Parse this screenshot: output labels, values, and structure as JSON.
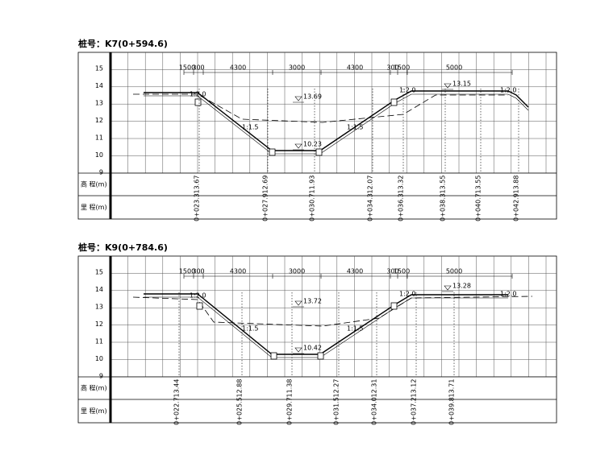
{
  "sections": [
    {
      "title": "桩号：K7(0+594.6)",
      "y_labels": [
        15,
        14,
        13,
        12,
        11,
        10,
        9
      ],
      "dims": [
        "1500",
        "300",
        "4300",
        "3000",
        "4300",
        "300",
        "1500",
        "5000"
      ],
      "slopes": [
        "1:2.0",
        "1:1.5",
        "1:1.5",
        "1:2.0",
        "1:2.0"
      ],
      "levels": [
        "13.69",
        "10.23",
        "13.15"
      ],
      "row_labels": [
        "高 程(m)",
        "里 程(m)"
      ],
      "elevations": [
        "13.67",
        "12.69",
        "11.93",
        "12.07",
        "13.32",
        "13.55",
        "13.55",
        "13.88"
      ],
      "mileages": [
        "0+023.3",
        "0+027.9",
        "0+030.7",
        "0+034.3",
        "0+036.3",
        "0+038.3",
        "0+040.7",
        "0+042.9"
      ]
    },
    {
      "title": "桩号：K9(0+784.6)",
      "y_labels": [
        15,
        14,
        13,
        12,
        11,
        10,
        9
      ],
      "dims": [
        "1500",
        "300",
        "4300",
        "3000",
        "4300",
        "300",
        "1500",
        "5000"
      ],
      "slopes": [
        "1:2.0",
        "1:1.5",
        "1:1.5",
        "1:2.0",
        "1:2.0"
      ],
      "levels": [
        "13.72",
        "10.42",
        "13.28"
      ],
      "row_labels": [
        "高 程(m)",
        "里 程(m)"
      ],
      "elevations": [
        "13.44",
        "12.88",
        "11.38",
        "12.27",
        "12.31",
        "13.12",
        "13.71"
      ],
      "mileages": [
        "0+022.7",
        "0+025.5",
        "0+029.7",
        "0+031.5",
        "0+034.0",
        "0+037.2",
        "0+039.8"
      ]
    }
  ]
}
